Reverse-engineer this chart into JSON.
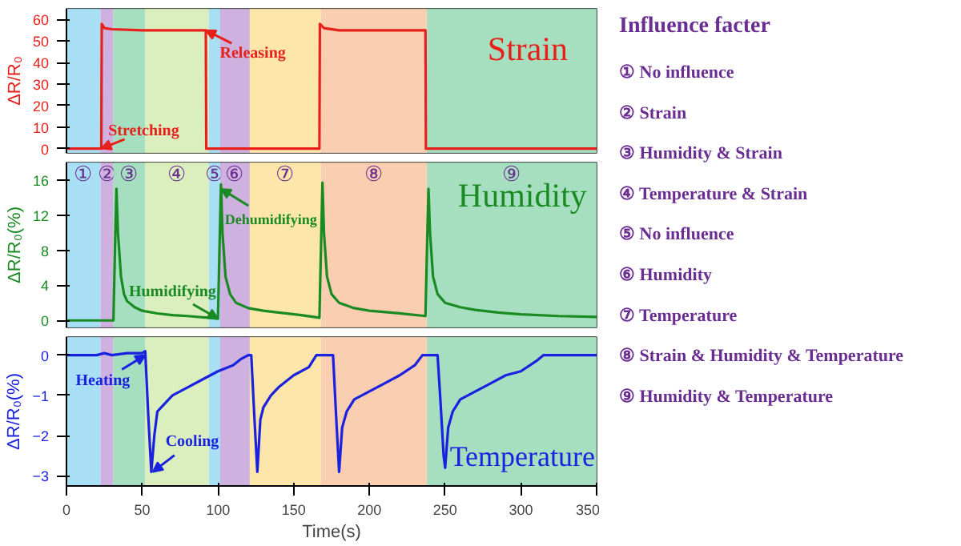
{
  "chart_data": [
    {
      "type": "line",
      "title": "Strain",
      "ylabel": "ΔR/R₀",
      "xlim": [
        0,
        350
      ],
      "xticks": [
        0,
        50,
        100,
        150,
        200,
        250,
        300,
        350
      ],
      "ylim": [
        -2,
        65
      ],
      "yticks": [
        0,
        10,
        20,
        30,
        40,
        50,
        60
      ],
      "tick_labels": "y",
      "grid": false,
      "marker": "none",
      "line_style": "solid",
      "series": [
        {
          "color": "#e8201c",
          "x": [
            0,
            23,
            23.3,
            25,
            30,
            50,
            80,
            92,
            92.3,
            167,
            167.3,
            170,
            180,
            200,
            237,
            237.3,
            350
          ],
          "values": [
            0,
            0,
            58,
            56,
            55.5,
            55,
            55,
            55,
            0,
            0,
            58,
            56,
            55,
            55,
            55,
            0,
            0
          ]
        }
      ],
      "bands": [
        {
          "axis": "x",
          "from": 0,
          "to": 22.5,
          "color": "#9fdcf4"
        },
        {
          "axis": "x",
          "from": 22.5,
          "to": 31,
          "color": "#c9a8dc"
        },
        {
          "axis": "x",
          "from": 31,
          "to": 52,
          "color": "#9cdcb8"
        },
        {
          "axis": "x",
          "from": 52,
          "to": 94,
          "color": "#d7ecb6"
        },
        {
          "axis": "x",
          "from": 94,
          "to": 101.5,
          "color": "#9fdcf4"
        },
        {
          "axis": "x",
          "from": 101.5,
          "to": 121,
          "color": "#c9a8dc"
        },
        {
          "axis": "x",
          "from": 121,
          "to": 168,
          "color": "#fce3a0"
        },
        {
          "axis": "x",
          "from": 168,
          "to": 238,
          "color": "#f8c9a8"
        },
        {
          "axis": "x",
          "from": 238,
          "to": 350,
          "color": "#9cdcb8"
        }
      ],
      "annotations": [
        {
          "text": "Releasing",
          "x": 92,
          "y": 55
        },
        {
          "text": "Stretching",
          "x": 23,
          "y": 0
        }
      ]
    },
    {
      "type": "line",
      "title": "Humidity",
      "ylabel": "ΔR/R₀(%)",
      "xlim": [
        0,
        350
      ],
      "xticks": [
        0,
        50,
        100,
        150,
        200,
        250,
        300,
        350
      ],
      "ylim": [
        -0.8,
        18
      ],
      "yticks": [
        0,
        4,
        8,
        12,
        16
      ],
      "tick_labels": "y",
      "grid": false,
      "marker": "none",
      "line_style": "solid",
      "series": [
        {
          "color": "#1a8a22",
          "x": [
            0,
            31,
            32,
            33,
            34,
            36,
            38,
            40,
            45,
            50,
            60,
            70,
            80,
            94,
            100,
            101,
            102,
            103,
            105,
            108,
            112,
            120,
            130,
            140,
            155,
            167,
            168,
            169,
            170,
            172,
            175,
            180,
            190,
            200,
            220,
            237,
            238,
            239,
            240,
            242,
            245,
            250,
            260,
            270,
            285,
            300,
            325,
            350
          ],
          "values": [
            0,
            0,
            8,
            15,
            10,
            5,
            3,
            2.2,
            1.5,
            1.1,
            0.8,
            0.6,
            0.5,
            0.3,
            0.2,
            8,
            15.5,
            10,
            5,
            3,
            2,
            1.4,
            1.1,
            0.9,
            0.6,
            0.3,
            8,
            15.7,
            10,
            5,
            3,
            2,
            1.4,
            1.1,
            0.8,
            0.5,
            8,
            15,
            10,
            5,
            3,
            2,
            1.5,
            1.2,
            0.9,
            0.7,
            0.5,
            0.4
          ]
        }
      ],
      "bands": [
        {
          "axis": "x",
          "from": 0,
          "to": 22.5,
          "color": "#9fdcf4",
          "label": "①"
        },
        {
          "axis": "x",
          "from": 22.5,
          "to": 31,
          "color": "#c9a8dc",
          "label": "②"
        },
        {
          "axis": "x",
          "from": 31,
          "to": 52,
          "color": "#9cdcb8",
          "label": "③"
        },
        {
          "axis": "x",
          "from": 52,
          "to": 94,
          "color": "#d7ecb6",
          "label": "④"
        },
        {
          "axis": "x",
          "from": 94,
          "to": 101.5,
          "color": "#9fdcf4",
          "label": "⑤"
        },
        {
          "axis": "x",
          "from": 101.5,
          "to": 121,
          "color": "#c9a8dc",
          "label": "⑥"
        },
        {
          "axis": "x",
          "from": 121,
          "to": 168,
          "color": "#fce3a0",
          "label": "⑦"
        },
        {
          "axis": "x",
          "from": 168,
          "to": 238,
          "color": "#f8c9a8",
          "label": "⑧"
        },
        {
          "axis": "x",
          "from": 238,
          "to": 350,
          "color": "#9cdcb8",
          "label": "⑨"
        }
      ],
      "annotations": [
        {
          "text": "Dehumidifying",
          "x": 102,
          "y": 15
        },
        {
          "text": "Humidifying",
          "x": 100,
          "y": 0.2
        }
      ]
    },
    {
      "type": "line",
      "title": "Temperature",
      "xlabel": "Time(s)",
      "ylabel": "ΔR/R₀(%)",
      "xlim": [
        0,
        350
      ],
      "xticks": [
        0,
        50,
        100,
        150,
        200,
        250,
        300,
        350
      ],
      "ylim": [
        -3.25,
        0.45
      ],
      "yticks": [
        -3,
        -2,
        -1,
        0
      ],
      "grid": false,
      "marker": "none",
      "line_style": "solid",
      "series": [
        {
          "color": "#1a22e0",
          "x": [
            0,
            20,
            25,
            30,
            40,
            50,
            52,
            54,
            56,
            58,
            60,
            65,
            70,
            80,
            90,
            100,
            110,
            115,
            120,
            122,
            124,
            126,
            128,
            130,
            135,
            140,
            150,
            160,
            165,
            168,
            176,
            178,
            180,
            182,
            185,
            190,
            200,
            210,
            220,
            230,
            235,
            238,
            245,
            247,
            249,
            250,
            252,
            255,
            260,
            270,
            280,
            290,
            300,
            310,
            315,
            350
          ],
          "values": [
            0,
            0,
            0.05,
            0,
            0.05,
            0.05,
            0.1,
            -1.5,
            -2.9,
            -2,
            -1.4,
            -1.2,
            -1.0,
            -0.8,
            -0.6,
            -0.4,
            -0.25,
            -0.1,
            0,
            0,
            -1.5,
            -2.9,
            -1.6,
            -1.3,
            -1,
            -0.8,
            -0.5,
            -0.3,
            0,
            0,
            0,
            -1.5,
            -2.9,
            -1.8,
            -1.4,
            -1.1,
            -0.9,
            -0.7,
            -0.5,
            -0.25,
            0,
            0,
            0,
            -1.2,
            -2.5,
            -2.8,
            -1.8,
            -1.4,
            -1.1,
            -0.9,
            -0.7,
            -0.5,
            -0.4,
            -0.15,
            0,
            0
          ]
        }
      ],
      "bands": [
        {
          "axis": "x",
          "from": 0,
          "to": 22.5,
          "color": "#9fdcf4"
        },
        {
          "axis": "x",
          "from": 22.5,
          "to": 31,
          "color": "#c9a8dc"
        },
        {
          "axis": "x",
          "from": 31,
          "to": 52,
          "color": "#9cdcb8"
        },
        {
          "axis": "x",
          "from": 52,
          "to": 94,
          "color": "#d7ecb6"
        },
        {
          "axis": "x",
          "from": 94,
          "to": 101.5,
          "color": "#9fdcf4"
        },
        {
          "axis": "x",
          "from": 101.5,
          "to": 121,
          "color": "#c9a8dc"
        },
        {
          "axis": "x",
          "from": 121,
          "to": 168,
          "color": "#fce3a0"
        },
        {
          "axis": "x",
          "from": 168,
          "to": 238,
          "color": "#f8c9a8"
        },
        {
          "axis": "x",
          "from": 238,
          "to": 350,
          "color": "#9cdcb8"
        }
      ],
      "annotations": [
        {
          "text": "Heating",
          "x": 52,
          "y": 0
        },
        {
          "text": "Cooling",
          "x": 57,
          "y": -2.9
        }
      ]
    },
    {
      "type": "other",
      "title": "Influence facter",
      "annotations": [
        "① No influence",
        "② Strain",
        "③ Humidity & Strain",
        "④ Temperature & Strain",
        "⑤ No influence",
        "⑥ Humidity",
        "⑦ Temperature",
        "⑧ Strain & Humidity & Temperature",
        "⑨ Humidity & Temperature"
      ]
    }
  ]
}
